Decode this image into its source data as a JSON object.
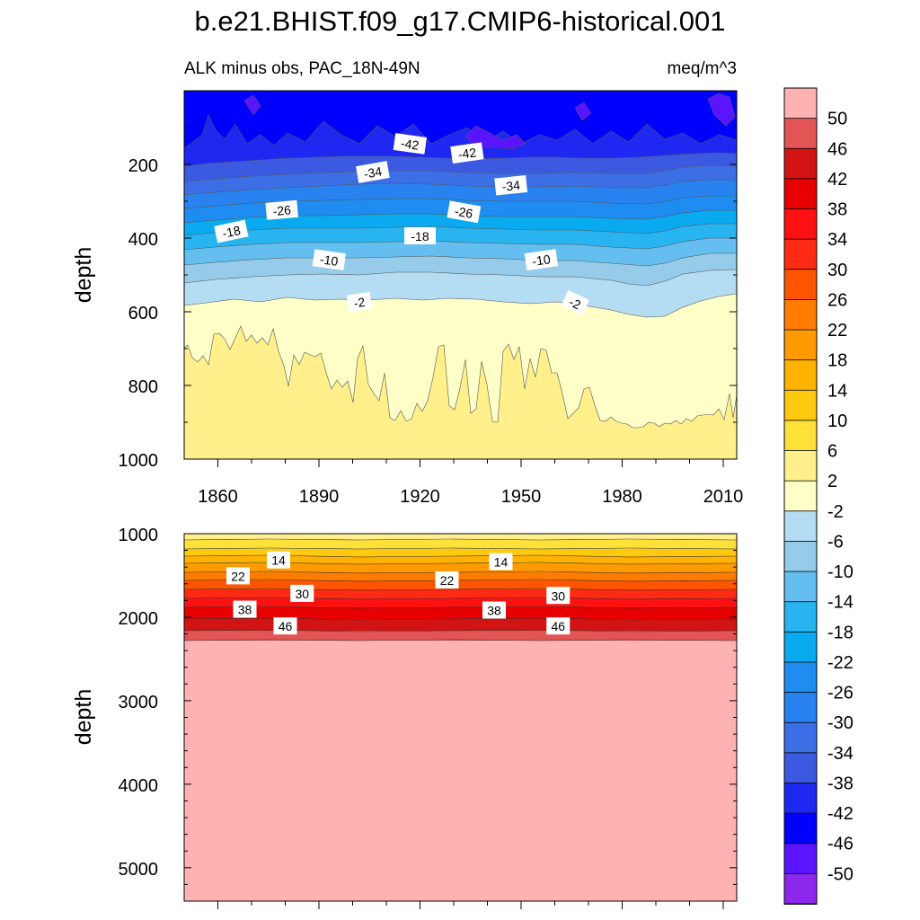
{
  "title": "b.e21.BHIST.f09_g17.CMIP6-historical.001",
  "subtitle_left": "ALK minus obs, PAC_18N-49N",
  "subtitle_right": "meq/m^3",
  "colors": {
    "background": "#ffffff",
    "axis": "#000000",
    "contour_line": "#333333"
  },
  "chart_data": [
    {
      "type": "contour",
      "panel": "upper",
      "ylabel": "depth",
      "xlim": [
        1850,
        2014
      ],
      "ylim": [
        1000,
        0
      ],
      "x_ticks": [
        1860,
        1890,
        1920,
        1950,
        1980,
        2010
      ],
      "x_tick_labels": [
        "1860",
        "1890",
        "1920",
        "1950",
        "1980",
        "2010"
      ],
      "y_ticks": [
        200,
        400,
        600,
        800,
        1000
      ],
      "y_tick_labels": [
        "200",
        "400",
        "600",
        "800",
        "1000"
      ],
      "contour_labels": [
        {
          "text": "-42",
          "year": 1917,
          "depth": 145,
          "angle": 8
        },
        {
          "text": "-42",
          "year": 1934,
          "depth": 170,
          "angle": -8
        },
        {
          "text": "-34",
          "year": 1906,
          "depth": 222,
          "angle": -10
        },
        {
          "text": "-34",
          "year": 1947,
          "depth": 258,
          "angle": -6
        },
        {
          "text": "-26",
          "year": 1879,
          "depth": 325,
          "angle": -5
        },
        {
          "text": "-26",
          "year": 1933,
          "depth": 330,
          "angle": 10
        },
        {
          "text": "-18",
          "year": 1864,
          "depth": 383,
          "angle": -12
        },
        {
          "text": "-18",
          "year": 1920,
          "depth": 395,
          "angle": 0
        },
        {
          "text": "-10",
          "year": 1893,
          "depth": 460,
          "angle": 8
        },
        {
          "text": "-10",
          "year": 1956,
          "depth": 460,
          "angle": -8
        },
        {
          "text": "-2",
          "year": 1902,
          "depth": 575,
          "angle": -8
        },
        {
          "text": "-2",
          "year": 1966,
          "depth": 577,
          "angle": 25
        }
      ]
    },
    {
      "type": "contour",
      "panel": "lower",
      "ylabel": "depth",
      "xlim": [
        1850,
        2014
      ],
      "ylim": [
        5400,
        1000
      ],
      "y_ticks": [
        1000,
        2000,
        3000,
        4000,
        5000
      ],
      "y_tick_labels": [
        "1000",
        "2000",
        "3000",
        "4000",
        "5000"
      ],
      "contour_labels": [
        {
          "text": "14",
          "year": 1878,
          "depth": 1320,
          "angle": 0
        },
        {
          "text": "14",
          "year": 1944,
          "depth": 1340,
          "angle": 0
        },
        {
          "text": "22",
          "year": 1866,
          "depth": 1510,
          "angle": 0
        },
        {
          "text": "22",
          "year": 1928,
          "depth": 1560,
          "angle": 0
        },
        {
          "text": "30",
          "year": 1885,
          "depth": 1720,
          "angle": 0
        },
        {
          "text": "30",
          "year": 1961,
          "depth": 1745,
          "angle": 0
        },
        {
          "text": "38",
          "year": 1868,
          "depth": 1910,
          "angle": 0
        },
        {
          "text": "38",
          "year": 1942,
          "depth": 1920,
          "angle": 0
        },
        {
          "text": "46",
          "year": 1880,
          "depth": 2110,
          "angle": 0
        },
        {
          "text": "46",
          "year": 1961,
          "depth": 2110,
          "angle": 0
        }
      ]
    }
  ],
  "colorbar": {
    "labels": [
      "50",
      "46",
      "42",
      "38",
      "34",
      "30",
      "26",
      "22",
      "18",
      "14",
      "10",
      "6",
      "2",
      "-2",
      "-6",
      "-10",
      "-14",
      "-18",
      "-22",
      "-26",
      "-30",
      "-34",
      "-38",
      "-42",
      "-46",
      "-50"
    ],
    "colors": [
      "#ffb2b2",
      "#e35555",
      "#d21313",
      "#e60000",
      "#ff1111",
      "#ff2a14",
      "#ff5500",
      "#ff7c00",
      "#ff9b00",
      "#ffb300",
      "#ffc90f",
      "#ffe139",
      "#fff08c",
      "#ffffc8",
      "#b4dcf2",
      "#96ccea",
      "#64bef0",
      "#28b4f0",
      "#0aaaf0",
      "#1e8cf0",
      "#2882f0",
      "#3c6ee6",
      "#3c5ae1",
      "#1e28f0",
      "#0000ff",
      "#5a14ff",
      "#8c28eb"
    ]
  }
}
